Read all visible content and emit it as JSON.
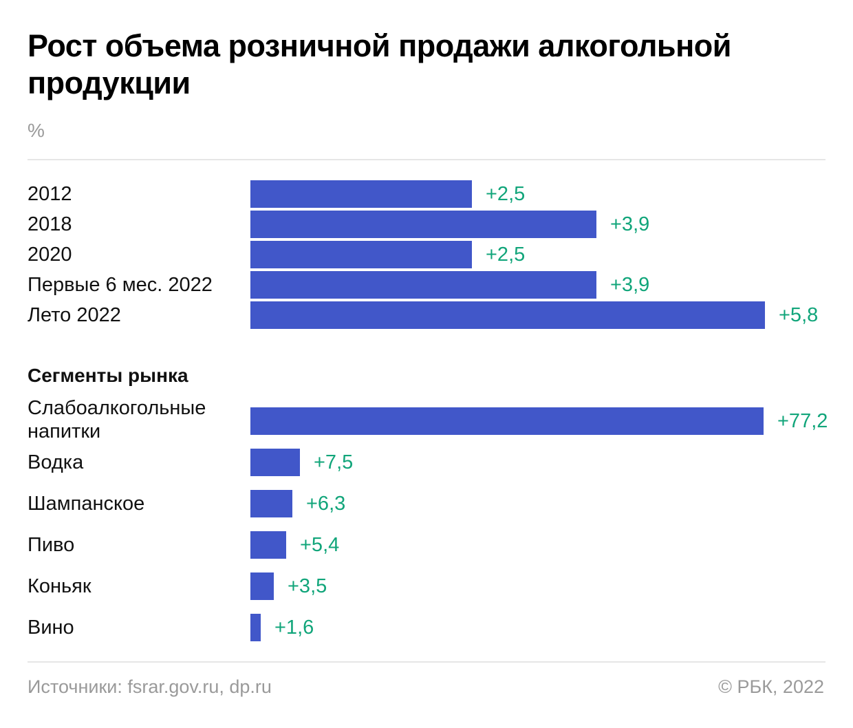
{
  "title": "Рост объема розничной продажи алкогольной продукции",
  "unit": "%",
  "section2_title": "Сегменты рынка",
  "footer": {
    "source": "Источники: fsrar.gov.ru, dp.ru",
    "copyright": "© РБК, 2022"
  },
  "colors": {
    "bar": "#4157c9",
    "value_label": "#11a57a"
  },
  "chart_data": [
    {
      "type": "bar",
      "orientation": "horizontal",
      "title": "Рост объема розничной продажи алкогольной продукции",
      "unit": "%",
      "categories": [
        "2012",
        "2018",
        "2020",
        "Первые 6 мес. 2022",
        "Лето 2022"
      ],
      "values": [
        2.5,
        3.9,
        2.5,
        3.9,
        5.8
      ],
      "value_labels": [
        "+2,5",
        "+3,9",
        "+2,5",
        "+3,9",
        "+5,8"
      ],
      "xlim": [
        0,
        5.8
      ],
      "grid": false
    },
    {
      "type": "bar",
      "orientation": "horizontal",
      "title": "Сегменты рынка",
      "unit": "%",
      "categories": [
        "Слабоалкогольные напитки",
        "Водка",
        "Шампанское",
        "Пиво",
        "Коньяк",
        "Вино"
      ],
      "values": [
        77.2,
        7.5,
        6.3,
        5.4,
        3.5,
        1.6
      ],
      "value_labels": [
        "+77,2",
        "+7,5",
        "+6,3",
        "+5,4",
        "+3,5",
        "+1,6"
      ],
      "xlim": [
        0,
        77.2
      ],
      "grid": false
    }
  ]
}
